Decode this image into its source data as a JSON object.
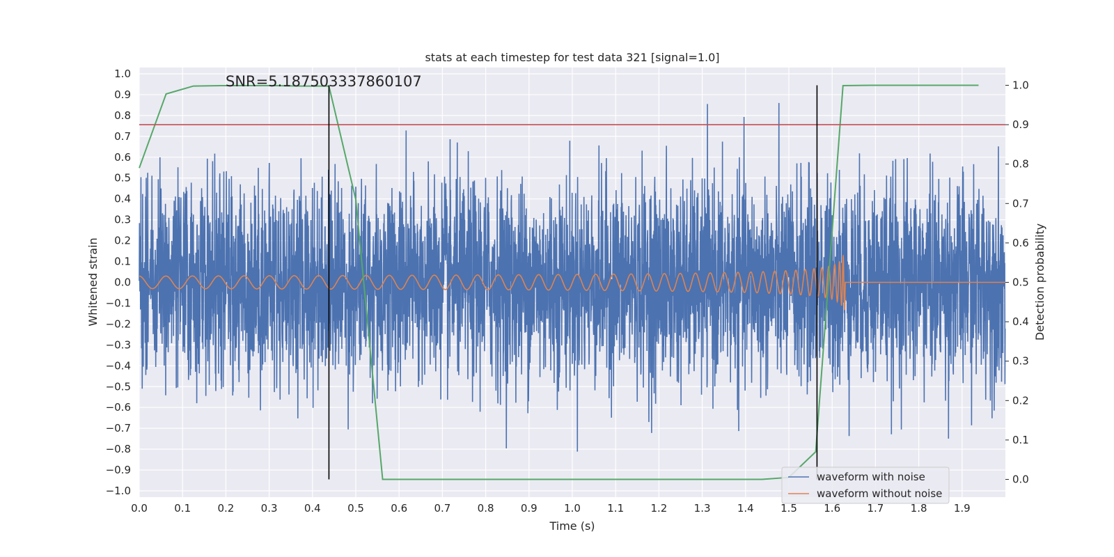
{
  "chart_data": {
    "type": "line",
    "title": "stats at each timestep for test data 321 [signal=1.0]",
    "xlabel": "Time (s)",
    "ylabel": "Whitened strain",
    "y2label": "Detection probability",
    "annotation": "SNR=5.187503337860107",
    "xlim": [
      0.0,
      2.0
    ],
    "ylim": [
      -1.03,
      1.03
    ],
    "y2lim": [
      -0.045,
      1.045
    ],
    "x_ticks": [
      "0.0",
      "0.1",
      "0.2",
      "0.3",
      "0.4",
      "0.5",
      "0.6",
      "0.7",
      "0.8",
      "0.9",
      "1.0",
      "1.1",
      "1.2",
      "1.3",
      "1.4",
      "1.5",
      "1.6",
      "1.7",
      "1.8",
      "1.9"
    ],
    "y_ticks": [
      "1.0",
      "0.9",
      "0.8",
      "0.7",
      "0.6",
      "0.5",
      "0.4",
      "0.3",
      "0.2",
      "0.1",
      "0.0",
      "−0.1",
      "−0.2",
      "−0.3",
      "−0.4",
      "−0.5",
      "−0.6",
      "−0.7",
      "−0.8",
      "−0.9",
      "−1.0"
    ],
    "y2_ticks": [
      "1.0",
      "0.9",
      "0.8",
      "0.7",
      "0.6",
      "0.5",
      "0.4",
      "0.3",
      "0.2",
      "0.1",
      "0.0"
    ],
    "grid": true,
    "legend_position": "lower-right",
    "threshold": 0.9,
    "vlines": [
      0.438,
      1.565
    ],
    "series": [
      {
        "name": "waveform with noise",
        "color": "#4c72b0",
        "axis": "left",
        "sample_rate": 2048,
        "amplitude_range": [
          -0.93,
          1.0
        ]
      },
      {
        "name": "waveform without noise",
        "color": "#dd8452",
        "axis": "left",
        "chirp_end": 1.63,
        "amplitude_start": 0.03,
        "amplitude_peak": 0.16
      }
    ],
    "detection_probability": {
      "color": "#55a868",
      "x": [
        0.0,
        0.062,
        0.125,
        0.188,
        0.25,
        0.312,
        0.375,
        0.438,
        0.5,
        0.562,
        0.625,
        0.688,
        0.75,
        0.812,
        0.875,
        0.938,
        1.0,
        1.062,
        1.125,
        1.188,
        1.25,
        1.312,
        1.375,
        1.438,
        1.5,
        1.562,
        1.625,
        1.688,
        1.75,
        1.812,
        1.875,
        1.938
      ],
      "y": [
        0.79,
        0.978,
        0.998,
        0.999,
        0.999,
        0.999,
        0.998,
        0.998,
        0.71,
        0.0,
        0.0,
        0.0,
        0.0,
        0.0,
        0.0,
        0.0,
        0.0,
        0.0,
        0.0,
        0.0,
        0.0,
        0.0,
        0.0,
        0.0,
        0.005,
        0.07,
        0.999,
        1.0,
        1.0,
        1.0,
        1.0,
        1.0
      ]
    },
    "colors": {
      "background": "#eaeaf2",
      "grid": "#ffffff",
      "threshold": "#c44e52",
      "vline": "#000000"
    }
  }
}
